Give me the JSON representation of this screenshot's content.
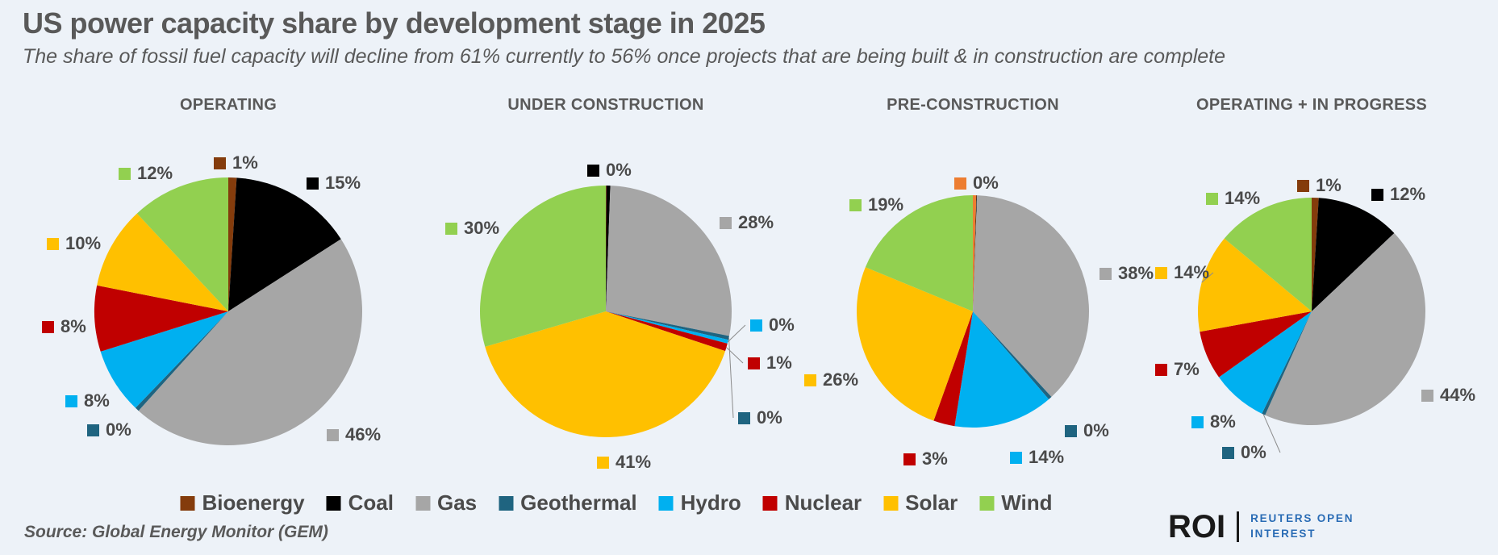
{
  "page": {
    "title": "US power capacity share by development stage in 2025",
    "subtitle": "The share of fossil fuel capacity will decline from 61% currently to 56% once projects that are being built & in construction are complete",
    "source": "Source: Global Energy Monitor (GEM)",
    "logo": {
      "mark": "ROI",
      "line1": "REUTERS OPEN",
      "line2": "INTEREST"
    },
    "background_color": "#EDF2F8",
    "text_color": "#595959"
  },
  "chart_data": {
    "type": "pie",
    "categories": [
      "Bioenergy",
      "Coal",
      "Gas",
      "Geothermal",
      "Hydro",
      "Nuclear",
      "Solar",
      "Wind"
    ],
    "colors": {
      "Bioenergy": "#843C0C",
      "Coal": "#000000",
      "Gas": "#A6A6A6",
      "Geothermal": "#1F6480",
      "Hydro": "#00B0F0",
      "Nuclear": "#C00000",
      "Solar": "#FFC000",
      "Wind": "#92D050"
    },
    "legend": [
      "Bioenergy",
      "Coal",
      "Gas",
      "Geothermal",
      "Hydro",
      "Nuclear",
      "Solar",
      "Wind"
    ],
    "legend_position": "bottom",
    "charts": [
      {
        "title": "OPERATING",
        "values": [
          1,
          15,
          46,
          0,
          8,
          8,
          10,
          12
        ],
        "labels": [
          {
            "series": "Bioenergy",
            "text": "1%"
          },
          {
            "series": "Coal",
            "text": "15%"
          },
          {
            "series": "Gas",
            "text": "46%"
          },
          {
            "series": "Geothermal",
            "text": "0%"
          },
          {
            "series": "Hydro",
            "text": "8%"
          },
          {
            "series": "Nuclear",
            "text": "8%"
          },
          {
            "series": "Solar",
            "text": "10%"
          },
          {
            "series": "Wind",
            "text": "12%"
          }
        ]
      },
      {
        "title": "UNDER CONSTRUCTION",
        "values": [
          0,
          0,
          28,
          0,
          0,
          1,
          41,
          30
        ],
        "labels": [
          {
            "series": "Coal",
            "text": "0%"
          },
          {
            "series": "Gas",
            "text": "28%"
          },
          {
            "series": "Hydro",
            "text": "0%"
          },
          {
            "series": "Nuclear",
            "text": "1%"
          },
          {
            "series": "Geothermal",
            "text": "0%"
          },
          {
            "series": "Solar",
            "text": "41%"
          },
          {
            "series": "Wind",
            "text": "30%"
          }
        ]
      },
      {
        "title": "PRE-CONSTRUCTION",
        "values": [
          0,
          0,
          38,
          0,
          14,
          3,
          26,
          19
        ],
        "slice_color_overrides": {
          "Bioenergy": "#ED7D31"
        },
        "labels": [
          {
            "series": "Bioenergy",
            "text": "0%",
            "swatch_color": "#ED7D31"
          },
          {
            "series": "Gas",
            "text": "38%"
          },
          {
            "series": "Geothermal",
            "text": "0%"
          },
          {
            "series": "Hydro",
            "text": "14%"
          },
          {
            "series": "Nuclear",
            "text": "3%"
          },
          {
            "series": "Solar",
            "text": "26%"
          },
          {
            "series": "Wind",
            "text": "19%"
          }
        ]
      },
      {
        "title": "OPERATING + IN PROGRESS",
        "values": [
          1,
          12,
          44,
          0,
          8,
          7,
          14,
          14
        ],
        "labels": [
          {
            "series": "Bioenergy",
            "text": "1%"
          },
          {
            "series": "Coal",
            "text": "12%"
          },
          {
            "series": "Gas",
            "text": "44%"
          },
          {
            "series": "Geothermal",
            "text": "0%"
          },
          {
            "series": "Hydro",
            "text": "8%"
          },
          {
            "series": "Nuclear",
            "text": "7%"
          },
          {
            "series": "Solar",
            "text": "14%"
          },
          {
            "series": "Wind",
            "text": "14%"
          }
        ]
      }
    ]
  }
}
